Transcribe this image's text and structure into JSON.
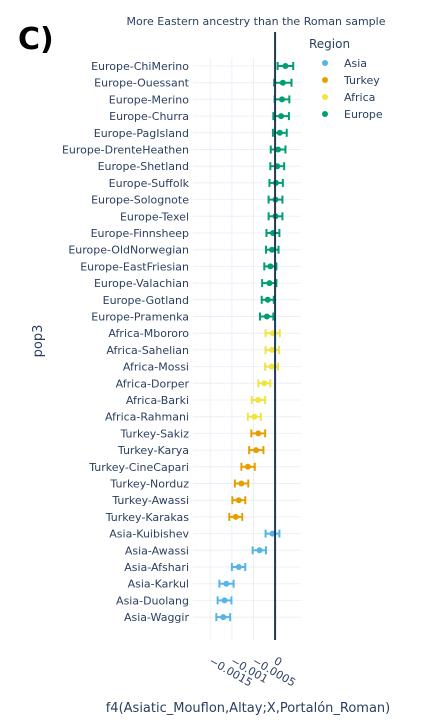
{
  "panel_label": "C)",
  "chart_data": {
    "type": "scatter",
    "title": "",
    "annotation": "More Eastern ancestry than the Roman sample",
    "xlabel": "f4(Asiatic_Mouflon,Altay;X,Portalón_Roman)",
    "ylabel": "pop3",
    "xlim": [
      -0.0019,
      0.0006
    ],
    "xticks": [
      -0.0015,
      -0.001,
      -0.0005,
      0
    ],
    "xtick_labels": [
      "−0.0015",
      "−0.001",
      "−0.0005",
      "0"
    ],
    "reference_line_x": 0,
    "grid": true,
    "legend_title": "Region",
    "legend_position": "top-right",
    "series": [
      {
        "name": "Asia",
        "color": "#56b4e9"
      },
      {
        "name": "Turkey",
        "color": "#e69f00"
      },
      {
        "name": "Africa",
        "color": "#f0e442"
      },
      {
        "name": "Europe",
        "color": "#009e73"
      }
    ],
    "points": [
      {
        "pop": "Europe-ChiMerino",
        "region": "Europe",
        "value": 0.00024,
        "lo": 6e-05,
        "hi": 0.00042
      },
      {
        "pop": "Europe-Ouessant",
        "region": "Europe",
        "value": 0.00018,
        "lo": -2e-05,
        "hi": 0.00038
      },
      {
        "pop": "Europe-Merino",
        "region": "Europe",
        "value": 0.00016,
        "lo": -1e-05,
        "hi": 0.00033
      },
      {
        "pop": "Europe-Churra",
        "region": "Europe",
        "value": 0.00014,
        "lo": -4e-05,
        "hi": 0.00032
      },
      {
        "pop": "Europe-PagIsland",
        "region": "Europe",
        "value": 0.00011,
        "lo": -5e-05,
        "hi": 0.00027
      },
      {
        "pop": "Europe-DrenteHeathen",
        "region": "Europe",
        "value": 7e-05,
        "lo": -0.0001,
        "hi": 0.00024
      },
      {
        "pop": "Europe-Shetland",
        "region": "Europe",
        "value": 5e-05,
        "lo": -0.00011,
        "hi": 0.00021
      },
      {
        "pop": "Europe-Suffolk",
        "region": "Europe",
        "value": 2e-05,
        "lo": -0.00013,
        "hi": 0.00018
      },
      {
        "pop": "Europe-Solognote",
        "region": "Europe",
        "value": 1e-05,
        "lo": -0.00015,
        "hi": 0.00017
      },
      {
        "pop": "Europe-Texel",
        "region": "Europe",
        "value": 1e-05,
        "lo": -0.00015,
        "hi": 0.00017
      },
      {
        "pop": "Europe-Finnsheep",
        "region": "Europe",
        "value": -5e-05,
        "lo": -0.0002,
        "hi": 0.0001
      },
      {
        "pop": "Europe-OldNorwegian",
        "region": "Europe",
        "value": -7e-05,
        "lo": -0.00021,
        "hi": 8e-05
      },
      {
        "pop": "Europe-EastFriesian",
        "region": "Europe",
        "value": -0.00011,
        "lo": -0.00025,
        "hi": 3e-05
      },
      {
        "pop": "Europe-Valachian",
        "region": "Europe",
        "value": -0.00013,
        "lo": -0.0003,
        "hi": 3e-05
      },
      {
        "pop": "Europe-Gotland",
        "region": "Europe",
        "value": -0.00017,
        "lo": -0.00031,
        "hi": -3e-05
      },
      {
        "pop": "Europe-Pramenka",
        "region": "Europe",
        "value": -0.00019,
        "lo": -0.00035,
        "hi": -4e-05
      },
      {
        "pop": "Africa-Mbororo",
        "region": "Africa",
        "value": -5e-05,
        "lo": -0.00022,
        "hi": 0.00011
      },
      {
        "pop": "Africa-Sahelian",
        "region": "Africa",
        "value": -7e-05,
        "lo": -0.00022,
        "hi": 9e-05
      },
      {
        "pop": "Africa-Mossi",
        "region": "Africa",
        "value": -8e-05,
        "lo": -0.00023,
        "hi": 7e-05
      },
      {
        "pop": "Africa-Dorper",
        "region": "Africa",
        "value": -0.00025,
        "lo": -0.00039,
        "hi": -0.00011
      },
      {
        "pop": "Africa-Barki",
        "region": "Africa",
        "value": -0.00039,
        "lo": -0.00054,
        "hi": -0.00023
      },
      {
        "pop": "Africa-Rahmani",
        "region": "Africa",
        "value": -0.00048,
        "lo": -0.00063,
        "hi": -0.00033
      },
      {
        "pop": "Turkey-Sakiz",
        "region": "Turkey",
        "value": -0.00039,
        "lo": -0.00055,
        "hi": -0.00023
      },
      {
        "pop": "Turkey-Karya",
        "region": "Turkey",
        "value": -0.00044,
        "lo": -0.0006,
        "hi": -0.00027
      },
      {
        "pop": "Turkey-CineCapari",
        "region": "Turkey",
        "value": -0.00063,
        "lo": -0.00078,
        "hi": -0.00047
      },
      {
        "pop": "Turkey-Norduz",
        "region": "Turkey",
        "value": -0.00078,
        "lo": -0.00093,
        "hi": -0.00062
      },
      {
        "pop": "Turkey-Awassi",
        "region": "Turkey",
        "value": -0.00084,
        "lo": -0.00099,
        "hi": -0.00069
      },
      {
        "pop": "Turkey-Karakas",
        "region": "Turkey",
        "value": -0.00091,
        "lo": -0.00106,
        "hi": -0.00076
      },
      {
        "pop": "Asia-Kuibishev",
        "region": "Asia",
        "value": -6e-05,
        "lo": -0.00022,
        "hi": 0.0001
      },
      {
        "pop": "Asia-Awassi",
        "region": "Asia",
        "value": -0.00036,
        "lo": -0.00052,
        "hi": -0.00021
      },
      {
        "pop": "Asia-Afshari",
        "region": "Asia",
        "value": -0.00084,
        "lo": -0.001,
        "hi": -0.00069
      },
      {
        "pop": "Asia-Karkul",
        "region": "Asia",
        "value": -0.00113,
        "lo": -0.00129,
        "hi": -0.00096
      },
      {
        "pop": "Asia-Duolang",
        "region": "Asia",
        "value": -0.00117,
        "lo": -0.00133,
        "hi": -0.00101
      },
      {
        "pop": "Asia-Waggir",
        "region": "Asia",
        "value": -0.0012,
        "lo": -0.00136,
        "hi": -0.00104
      }
    ]
  }
}
